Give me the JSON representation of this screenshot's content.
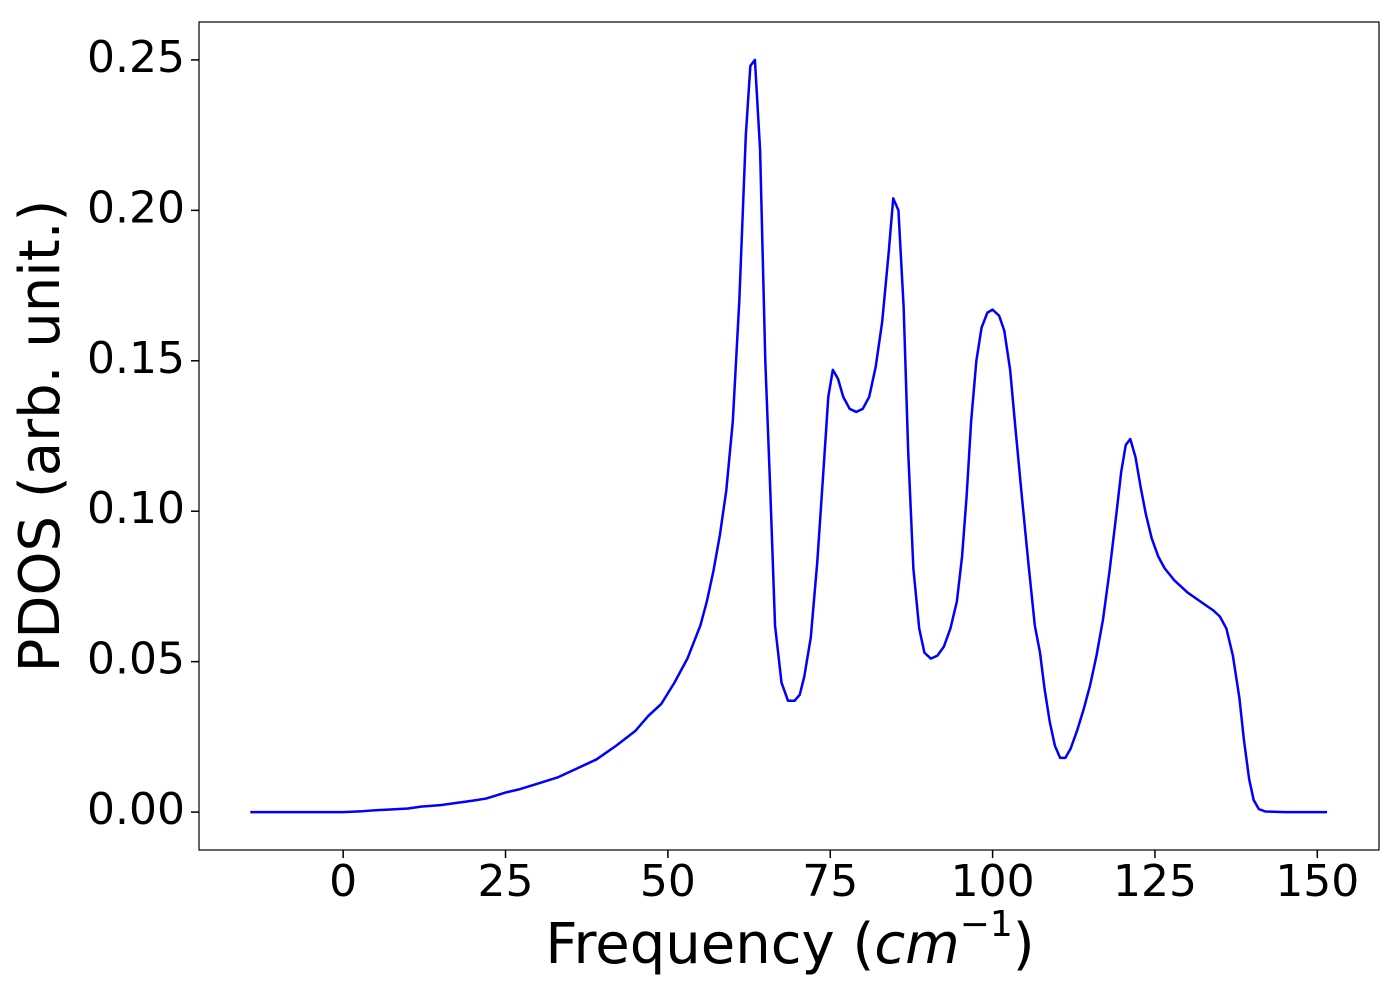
{
  "chart_data": {
    "type": "line",
    "xlabel": {
      "prefix": "Frequency (",
      "math": "cm",
      "sup": "−1",
      "suffix": ")"
    },
    "ylabel": "PDOS (arb. unit.)",
    "xlim": [
      -22.2,
      159.5
    ],
    "ylim": [
      -0.0126,
      0.2626
    ],
    "xticks": [
      0,
      25,
      50,
      75,
      100,
      125,
      150
    ],
    "yticks": [
      {
        "value": 0,
        "label": "0.00"
      },
      {
        "value": 0.05,
        "label": "0.05"
      },
      {
        "value": 0.1,
        "label": "0.10"
      },
      {
        "value": 0.15,
        "label": "0.15"
      },
      {
        "value": 0.2,
        "label": "0.20"
      },
      {
        "value": 0.25,
        "label": "0.25"
      }
    ],
    "grid": false,
    "series": [
      {
        "color": "#0000ff",
        "x": [
          -14.3,
          0,
          3,
          5,
          10,
          12,
          15,
          20,
          22,
          25,
          27,
          30,
          33,
          36,
          39,
          42,
          45,
          47,
          49,
          51,
          53,
          55,
          56,
          57,
          58,
          59,
          60,
          61,
          62,
          62.7,
          63.4,
          64.2,
          65,
          65.8,
          66.5,
          67.5,
          68.5,
          69.5,
          70.3,
          71,
          72,
          73,
          74,
          74.7,
          75.4,
          76.2,
          77,
          78,
          79,
          80,
          81,
          82,
          83,
          84,
          84.7,
          85.5,
          86.3,
          87,
          87.8,
          88.7,
          89.5,
          90.5,
          91.5,
          92.5,
          93.5,
          94.5,
          95.3,
          96,
          96.7,
          97.5,
          98.3,
          99.2,
          100,
          101,
          101.8,
          102.7,
          103.5,
          104.5,
          105.5,
          106.5,
          107.3,
          108,
          108.8,
          109.6,
          110.4,
          111.2,
          112,
          113,
          114,
          115,
          116,
          117,
          118,
          119,
          119.8,
          120.5,
          121.2,
          122,
          122.8,
          123.6,
          124.5,
          125.5,
          126.5,
          128,
          130,
          132,
          134,
          135,
          136,
          137,
          138,
          138.7,
          139.5,
          140.2,
          141,
          142,
          145,
          151.5
        ],
        "values": [
          0,
          0,
          0.0003,
          0.0006,
          0.0012,
          0.0018,
          0.0023,
          0.0038,
          0.0045,
          0.0065,
          0.0075,
          0.0095,
          0.0115,
          0.0145,
          0.0175,
          0.022,
          0.027,
          0.032,
          0.036,
          0.043,
          0.051,
          0.062,
          0.07,
          0.08,
          0.092,
          0.107,
          0.13,
          0.17,
          0.225,
          0.248,
          0.25,
          0.22,
          0.15,
          0.105,
          0.062,
          0.043,
          0.037,
          0.037,
          0.039,
          0.045,
          0.058,
          0.083,
          0.115,
          0.138,
          0.147,
          0.144,
          0.138,
          0.134,
          0.133,
          0.134,
          0.138,
          0.148,
          0.163,
          0.186,
          0.204,
          0.2,
          0.168,
          0.12,
          0.081,
          0.061,
          0.053,
          0.051,
          0.052,
          0.055,
          0.061,
          0.07,
          0.085,
          0.105,
          0.13,
          0.15,
          0.161,
          0.166,
          0.167,
          0.165,
          0.16,
          0.147,
          0.128,
          0.105,
          0.083,
          0.062,
          0.053,
          0.041,
          0.03,
          0.022,
          0.018,
          0.018,
          0.021,
          0.027,
          0.034,
          0.042,
          0.052,
          0.064,
          0.08,
          0.098,
          0.113,
          0.122,
          0.124,
          0.118,
          0.108,
          0.099,
          0.091,
          0.085,
          0.081,
          0.077,
          0.073,
          0.07,
          0.067,
          0.065,
          0.061,
          0.052,
          0.038,
          0.024,
          0.011,
          0.004,
          0.001,
          0.0002,
          0,
          0
        ]
      }
    ]
  }
}
